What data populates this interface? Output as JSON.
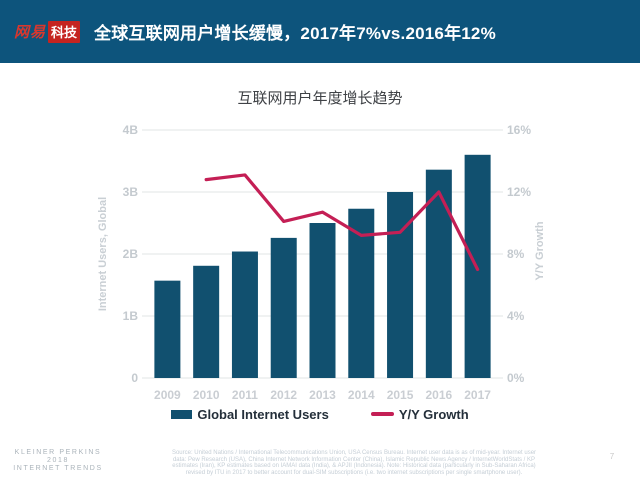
{
  "header": {
    "brand_part1": "网易",
    "brand_part2": "科技",
    "title": "全球互联网用户增长缓慢，2017年7%vs.2016年12%"
  },
  "chart_data": {
    "type": "bar",
    "title": "互联网用户年度增长趋势",
    "categories": [
      "2009",
      "2010",
      "2011",
      "2012",
      "2013",
      "2014",
      "2015",
      "2016",
      "2017"
    ],
    "series": [
      {
        "name": "Global Internet Users",
        "type": "bar",
        "axis": "left",
        "unit": "billions",
        "color": "#11506f",
        "values": [
          1.57,
          1.81,
          2.04,
          2.26,
          2.5,
          2.73,
          3.0,
          3.36,
          3.6
        ]
      },
      {
        "name": "Y/Y Growth",
        "type": "line",
        "axis": "right",
        "unit": "percent",
        "color": "#c41f55",
        "values": [
          null,
          12.8,
          13.1,
          10.1,
          10.7,
          9.2,
          9.4,
          12.0,
          7.0
        ]
      }
    ],
    "left_axis": {
      "label": "Internet Users, Global",
      "min": 0,
      "max": 4,
      "ticks": [
        "0",
        "1B",
        "2B",
        "3B",
        "4B"
      ]
    },
    "right_axis": {
      "label": "Y/Y Growth",
      "min": 0,
      "max": 16,
      "ticks": [
        "0%",
        "4%",
        "8%",
        "12%",
        "16%"
      ]
    },
    "grid": true,
    "legend_position": "bottom"
  },
  "footer": {
    "kp_lines": [
      "KLEINER PERKINS",
      "2018",
      "INTERNET TRENDS"
    ],
    "source_lines": [
      "Source: United Nations / International Telecommunications Union, USA Census Bureau. Internet user data is as of mid-year. Internet user",
      "data: Pew Research (USA), China Internet Network Information Center (China), Islamic Republic News Agency / InternetWorldStats / KP",
      "estimates (Iran), KP estimates based on IAMAI data (India), & APJII (Indonesia). Note: Historical data (particularly in Sub-Saharan Africa)",
      "revised by ITU in 2017 to better account for dual-SIM subscriptions (i.e. two internet subscriptions per single smartphone user)."
    ],
    "page_number": "7"
  },
  "colors": {
    "header_bg": "#0d547c",
    "bar": "#11506f",
    "line": "#c41f55",
    "brand_red": "#c52420"
  }
}
